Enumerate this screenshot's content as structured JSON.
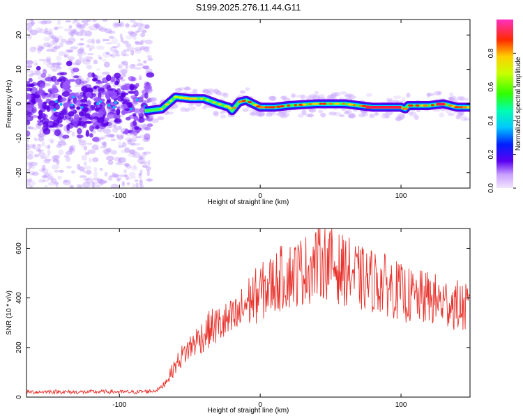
{
  "title": "S199.2025.276.11.44.G11",
  "chart_data": [
    {
      "type": "heatmap",
      "xlabel": "Height of straight line (km)",
      "ylabel": "Frequency (Hz)",
      "xlim": [
        -166,
        149
      ],
      "ylim": [
        -24.5,
        24.5
      ],
      "x_ticks": [
        -100,
        0,
        100
      ],
      "x_tick_labels": [
        "-100",
        "0",
        "100"
      ],
      "y_ticks": [
        20,
        10,
        0,
        -10,
        -20
      ],
      "y_tick_labels": [
        "20",
        "10",
        "0",
        "-10",
        "-20"
      ],
      "colorbar": {
        "label": "Normalized spectral amplitude",
        "range": [
          0,
          1
        ],
        "ticks": [
          0.0,
          0.2,
          0.4,
          0.6,
          0.8
        ],
        "tick_labels": [
          "0.0",
          "0.2",
          "0.4",
          "0.6",
          "0.8"
        ]
      },
      "ridge_center_hz": {
        "x": [
          -80,
          -70,
          -60,
          -50,
          -40,
          -30,
          -22,
          -20,
          -15,
          -10,
          0,
          10,
          20,
          40,
          60,
          80,
          100,
          103,
          105,
          110,
          120,
          130,
          140,
          149
        ],
        "y": [
          -2,
          -1.5,
          2,
          1.5,
          1.5,
          0,
          -1,
          -2,
          0.5,
          1,
          -1,
          -1,
          -0.5,
          0,
          0,
          -1,
          -1,
          -1.5,
          -0.5,
          -0.5,
          -0.5,
          0,
          -1,
          -1
        ]
      }
    },
    {
      "type": "line",
      "xlabel": "Height of straight line (km)",
      "ylabel": "SNR (10 * v/v)",
      "xlim": [
        -166,
        149
      ],
      "ylim": [
        0,
        680
      ],
      "x_ticks": [
        -100,
        0,
        100
      ],
      "x_tick_labels": [
        "-100",
        "0",
        "100"
      ],
      "y_ticks": [
        0,
        200,
        400,
        600
      ],
      "y_tick_labels": [
        "0",
        "200",
        "400",
        "600"
      ],
      "series": [
        {
          "color": "#e8322c",
          "x": [
            -166,
            -150,
            -130,
            -110,
            -90,
            -75,
            -70,
            -65,
            -60,
            -55,
            -50,
            -45,
            -40,
            -35,
            -30,
            -25,
            -20,
            -15,
            -10,
            -5,
            0,
            5,
            10,
            15,
            20,
            25,
            30,
            35,
            40,
            45,
            50,
            55,
            60,
            65,
            70,
            75,
            80,
            85,
            90,
            95,
            100,
            105,
            110,
            115,
            120,
            125,
            130,
            135,
            140,
            145,
            149
          ],
          "y": [
            20,
            22,
            20,
            22,
            20,
            25,
            40,
            80,
            130,
            170,
            200,
            230,
            250,
            280,
            290,
            300,
            310,
            330,
            380,
            400,
            420,
            440,
            460,
            480,
            490,
            500,
            510,
            520,
            540,
            550,
            540,
            520,
            510,
            500,
            480,
            470,
            470,
            460,
            450,
            440,
            420,
            410,
            400,
            400,
            400,
            390,
            380,
            380,
            370,
            360,
            350
          ]
        }
      ]
    }
  ],
  "colors": {
    "line": "#e8322c",
    "heatmap_low": "#f0d8ff",
    "heatmap_mid": "#6a00e8"
  }
}
